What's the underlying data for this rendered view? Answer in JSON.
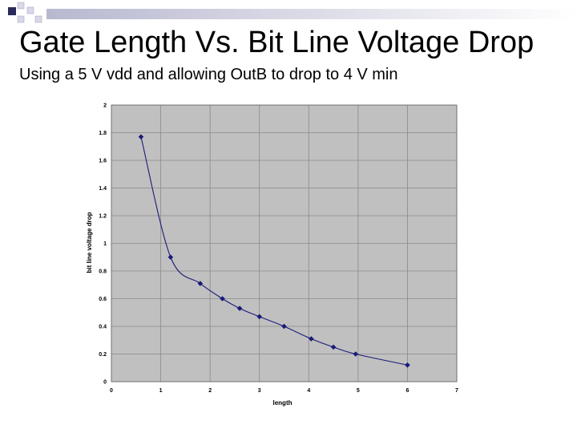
{
  "slide": {
    "title": "Gate Length Vs. Bit Line Voltage Drop",
    "subtitle": "Using a 5 V vdd and allowing OutB to drop to 4 V min"
  },
  "colors": {
    "plot_background": "#c0c0c0",
    "grid": "#8a8a8a",
    "series": "#1a1a7a",
    "deco_square_dark": "#2a2a5a",
    "deco_square_light": "#d8d8e8"
  },
  "chart_data": {
    "type": "line",
    "xlabel": "length",
    "ylabel": "bit line voltage drop",
    "xlim": [
      0,
      7
    ],
    "ylim": [
      0,
      2
    ],
    "xticks": [
      0,
      1,
      2,
      3,
      4,
      5,
      6,
      7
    ],
    "yticks": [
      0,
      0.2,
      0.4,
      0.6,
      0.8,
      1,
      1.2,
      1.4,
      1.6,
      1.8,
      2
    ],
    "grid": true,
    "series": [
      {
        "x": [
          0.6,
          1.2,
          1.8,
          2.25,
          2.6,
          3.0,
          3.5,
          4.05,
          4.5,
          4.95,
          6.0
        ],
        "y": [
          1.77,
          0.9,
          0.71,
          0.6,
          0.53,
          0.47,
          0.4,
          0.31,
          0.25,
          0.2,
          0.12
        ]
      }
    ]
  }
}
